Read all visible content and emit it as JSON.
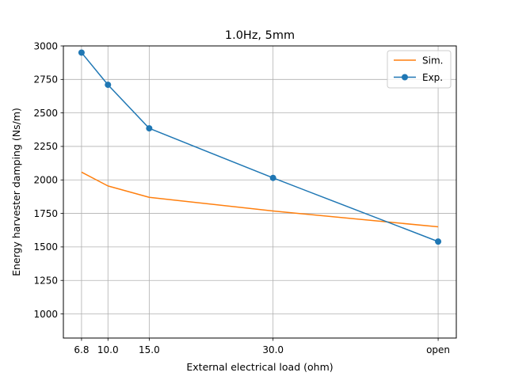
{
  "chart_data": {
    "type": "line",
    "title": "1.0Hz, 5mm",
    "xlabel": "External electrical load (ohm)",
    "ylabel": "Energy harvester damping (Ns/m)",
    "categories": [
      "6.8",
      "10.0",
      "15.0",
      "30.0",
      "open"
    ],
    "x": [
      6.8,
      10.0,
      15.0,
      30.0,
      50.0
    ],
    "xlim": [
      4.6,
      52.2
    ],
    "ylim": [
      820,
      3000
    ],
    "yticks": [
      1000,
      1250,
      1500,
      1750,
      2000,
      2250,
      2500,
      2750,
      3000
    ],
    "grid": true,
    "legend_position": "top-right",
    "series": [
      {
        "name": "Sim.",
        "color": "#ff7f0e",
        "marker": "none",
        "values": [
          2058,
          1955,
          1870,
          1768,
          1650
        ]
      },
      {
        "name": "Exp.",
        "color": "#1f77b4",
        "marker": "circle",
        "values": [
          2950,
          2710,
          2385,
          2015,
          1540
        ]
      }
    ]
  }
}
